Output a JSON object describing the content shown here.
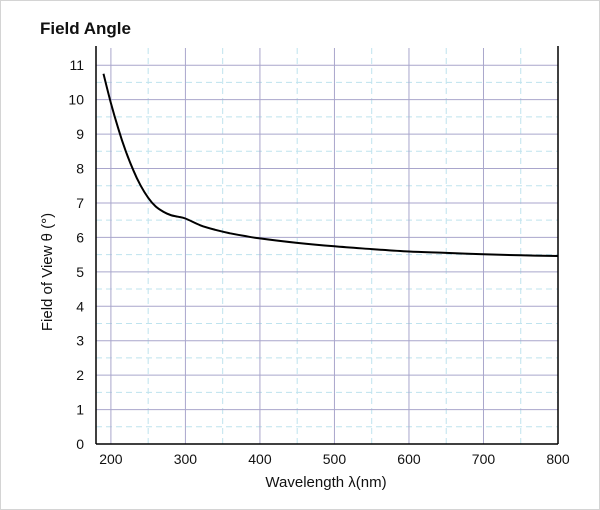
{
  "chart_data": {
    "type": "line",
    "title": "Field Angle",
    "xlabel": "Wavelength λ(nm)",
    "ylabel": "Field of View θ (°)",
    "xlim": [
      180,
      800
    ],
    "ylim": [
      0,
      11.5
    ],
    "x_ticks": [
      "200",
      "300",
      "400",
      "500",
      "600",
      "700",
      "800"
    ],
    "y_ticks": [
      "0",
      "1",
      "2",
      "3",
      "4",
      "5",
      "6",
      "7",
      "8",
      "9",
      "10",
      "11"
    ],
    "grid": true,
    "series": [
      {
        "points": [
          [
            190,
            10.75
          ],
          [
            200,
            9.9
          ],
          [
            210,
            9.15
          ],
          [
            220,
            8.5
          ],
          [
            230,
            7.95
          ],
          [
            240,
            7.5
          ],
          [
            250,
            7.15
          ],
          [
            260,
            6.9
          ],
          [
            270,
            6.75
          ],
          [
            280,
            6.65
          ],
          [
            290,
            6.6
          ],
          [
            300,
            6.55
          ],
          [
            320,
            6.35
          ],
          [
            340,
            6.22
          ],
          [
            360,
            6.12
          ],
          [
            380,
            6.04
          ],
          [
            400,
            5.97
          ],
          [
            450,
            5.84
          ],
          [
            500,
            5.74
          ],
          [
            550,
            5.66
          ],
          [
            600,
            5.59
          ],
          [
            650,
            5.55
          ],
          [
            700,
            5.51
          ],
          [
            750,
            5.48
          ],
          [
            800,
            5.46
          ]
        ]
      }
    ],
    "colors": {
      "line": "#000000",
      "grid_major": "#a9a6cc",
      "grid_minor": "#bfe3ee",
      "axis": "#000000"
    }
  }
}
